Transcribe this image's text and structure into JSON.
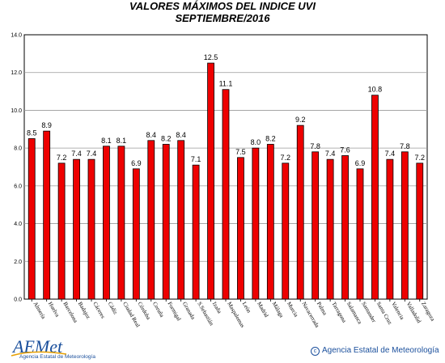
{
  "chart_data": {
    "type": "bar",
    "title": "VALORES MÁXIMOS DEL INDICE UVI",
    "subtitle": "SEPTIEMBRE/2016",
    "categories": [
      "Almería",
      "Huelva",
      "Barcelona",
      "Badajoz",
      "Cáceres",
      "Cádiz",
      "Ciudad Real",
      "Córdoba",
      "Coruña",
      "Formigal",
      "Granada",
      "S.Sebastián",
      "Izaña",
      "Maspalomas",
      "León",
      "Madrid",
      "Málaga",
      "Murcia",
      "Navacerrada",
      "Palma",
      "Tarragona",
      "Salamanca",
      "Santander",
      "Santa Cruz",
      "Valencia",
      "Valladolid",
      "Zaragoza"
    ],
    "values": [
      8.5,
      8.9,
      7.2,
      7.4,
      7.4,
      8.1,
      8.1,
      6.9,
      8.4,
      8.2,
      8.4,
      7.1,
      12.5,
      11.1,
      7.5,
      8.0,
      8.2,
      7.2,
      9.2,
      7.8,
      7.4,
      7.6,
      6.9,
      10.8,
      7.4,
      7.8,
      7.2
    ],
    "value_labels": [
      "8.5",
      "8.9",
      "7.2",
      "7.4",
      "7.4",
      "8.1",
      "8.1",
      "6.9",
      "8.4",
      "8.2",
      "8.4",
      "7.1",
      "12.5",
      "11.1",
      "7.5",
      "8.0",
      "8.2",
      "7.2",
      "9.2",
      "7.8",
      "7.4",
      "7.6",
      "6.9",
      "10.8",
      "7.4",
      "7.8",
      "7.2"
    ],
    "yticks": [
      "0.0",
      "2.0",
      "4.0",
      "6.0",
      "8.0",
      "10.0",
      "12.0",
      "14.0"
    ],
    "ylim": [
      0,
      14
    ],
    "grid": true,
    "bar_color": "#ee0000",
    "bar_stroke": "#000000"
  },
  "footer": {
    "logo_text": "AEMet",
    "logo_subtitle": "Agencia Estatal de Meteorología",
    "credit_symbol": "c",
    "credit_text": "Agencia Estatal de Meteorología"
  }
}
